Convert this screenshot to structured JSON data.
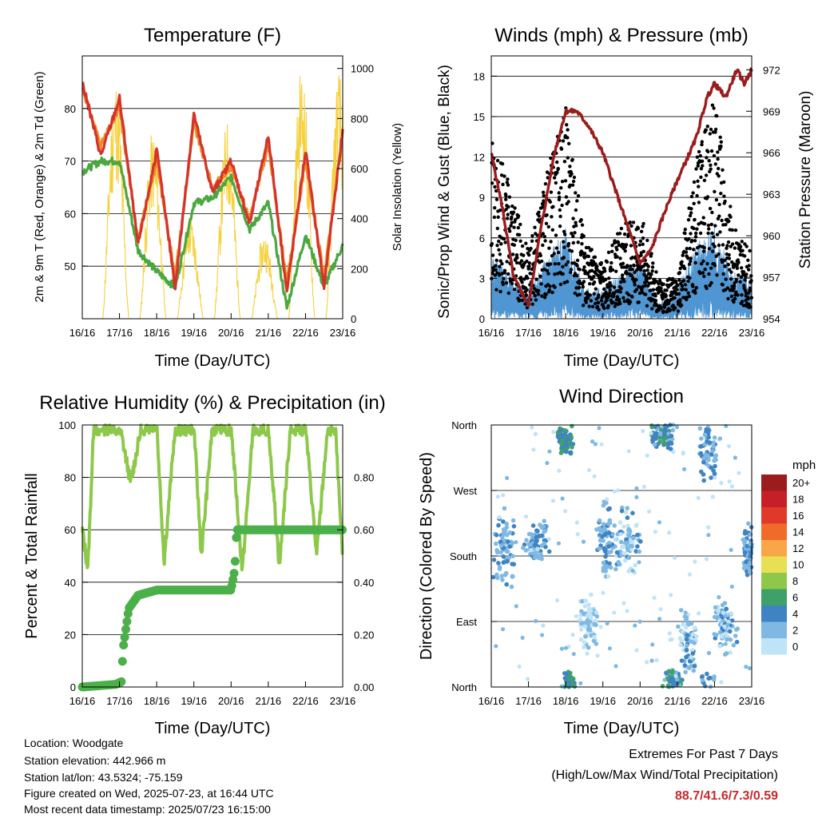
{
  "colors": {
    "temp2m": "#d4332a",
    "temp9m": "#f08a2a",
    "dewpoint": "#4aa83f",
    "insolation": "#f5d03a",
    "wind": "#4f96d2",
    "gust": "#000000",
    "pressure": "#9b1c1c",
    "rh": "#8dc84b",
    "precip": "#4bb04a",
    "extremes": "#c8282c"
  },
  "time_ticks": [
    "16/16",
    "17/16",
    "18/16",
    "19/16",
    "20/16",
    "21/16",
    "22/16",
    "23/16"
  ],
  "chart_data": [
    {
      "id": "temperature",
      "type": "line",
      "title": "Temperature (F)",
      "xlabel": "Time (Day/UTC)",
      "ylabel": "2m & 9m T (Red, Orange) & 2m Td (Green)",
      "y2label": "Solar Insolation (Yellow)",
      "x": [
        0,
        0.5,
        1,
        1.5,
        2,
        2.5,
        3,
        3.5,
        4,
        4.5,
        5,
        5.5,
        6,
        6.5,
        7
      ],
      "ylim": [
        40,
        90
      ],
      "yticks": [
        50,
        60,
        70,
        80
      ],
      "y2lim": [
        0,
        1050
      ],
      "y2ticks": [
        0,
        200,
        400,
        600,
        800,
        1000
      ],
      "grid": true,
      "series": [
        {
          "color_key": "temp2m",
          "values": [
            85,
            71,
            82,
            54,
            72,
            46,
            79,
            64,
            70,
            58,
            75,
            45,
            72,
            46,
            76
          ]
        },
        {
          "color_key": "temp9m",
          "values": [
            84,
            73,
            80,
            55,
            70,
            48,
            77,
            65,
            69,
            59,
            73,
            47,
            70,
            48,
            75
          ]
        },
        {
          "color_key": "dewpoint",
          "values": [
            68,
            70,
            70,
            53,
            49,
            46,
            62,
            63,
            67,
            57,
            62,
            42,
            56,
            46,
            54
          ]
        }
      ],
      "insolation": [
        {
          "day": 0,
          "peak": 980
        },
        {
          "day": 1,
          "peak": 760
        },
        {
          "day": 2,
          "peak": 420
        },
        {
          "day": 3,
          "peak": 800
        },
        {
          "day": 4,
          "peak": 350
        },
        {
          "day": 5,
          "peak": 1020
        },
        {
          "day": 6,
          "peak": 1000
        }
      ]
    },
    {
      "id": "winds",
      "type": "line",
      "title": "Winds (mph) & Pressure (mb)",
      "xlabel": "Time (Day/UTC)",
      "ylabel": "Sonic/Prop Wind & Gust (Blue, Black)",
      "y2label": "Station Pressure (Maroon)",
      "ylim": [
        0,
        19.5
      ],
      "yticks": [
        0,
        3,
        6,
        9,
        12,
        15,
        18
      ],
      "y2lim": [
        954,
        973
      ],
      "y2ticks": [
        954,
        957,
        960,
        963,
        966,
        969,
        972
      ],
      "grid": true,
      "pressure": {
        "x": [
          0,
          0.3,
          0.6,
          1,
          1.3,
          1.7,
          2,
          2.3,
          2.6,
          3,
          3.5,
          4,
          4.3,
          4.7,
          5,
          5.5,
          5.8,
          6,
          6.3,
          6.6,
          6.8,
          7
        ],
        "values": [
          966,
          962,
          957,
          955,
          960,
          966,
          969,
          969,
          968,
          966,
          962,
          958,
          959,
          962,
          964,
          967,
          970,
          971,
          970,
          972,
          971,
          972
        ]
      },
      "wind_envelope": [
        4,
        3,
        2,
        4,
        6,
        2,
        2,
        3,
        4,
        1,
        2,
        5,
        6,
        3,
        3
      ],
      "gust_envelope": [
        14,
        10,
        5,
        11,
        16,
        6,
        4,
        7,
        8,
        3,
        3,
        12,
        17,
        7,
        5
      ]
    },
    {
      "id": "humidity",
      "type": "line",
      "title": "Relative Humidity (%) & Precipitation (in)",
      "xlabel": "Time (Day/UTC)",
      "ylabel": "Percent & Total Rainfall",
      "ylim": [
        0,
        100
      ],
      "yticks": [
        0,
        20,
        40,
        60,
        80,
        100
      ],
      "y2lim": [
        0,
        1.0
      ],
      "y2ticks": [
        "0.00",
        "0.20",
        "0.40",
        "0.60",
        "0.80"
      ],
      "grid": true,
      "rh": {
        "x": [
          0,
          0.15,
          0.3,
          0.5,
          0.7,
          1,
          1.3,
          1.6,
          1.8,
          2.0,
          2.2,
          2.5,
          2.8,
          3.0,
          3.2,
          3.5,
          3.8,
          4.0,
          4.3,
          4.6,
          4.8,
          5.0,
          5.3,
          5.6,
          5.8,
          6.0,
          6.3,
          6.6,
          6.8,
          7.0
        ],
        "values": [
          60,
          45,
          97,
          100,
          100,
          100,
          78,
          100,
          100,
          100,
          48,
          100,
          100,
          100,
          50,
          100,
          100,
          100,
          44,
          100,
          100,
          100,
          46,
          100,
          100,
          100,
          50,
          100,
          100,
          48
        ]
      },
      "precip": {
        "x": [
          0,
          0.9,
          1.05,
          1.1,
          1.25,
          1.5,
          2.0,
          3.0,
          4.0,
          4.1,
          4.15,
          5.0,
          6.0,
          7.0
        ],
        "values": [
          0.0,
          0.01,
          0.02,
          0.15,
          0.3,
          0.35,
          0.37,
          0.37,
          0.37,
          0.45,
          0.6,
          0.6,
          0.6,
          0.6
        ]
      }
    },
    {
      "id": "direction",
      "type": "scatter",
      "title": "Wind Direction",
      "xlabel": "Time (Day/UTC)",
      "ylabel": "Direction (Colored By Speed)",
      "yticks": [
        "North",
        "East",
        "South",
        "West",
        "North"
      ],
      "ylim": [
        0,
        360
      ],
      "grid": true,
      "legend_title": "mph",
      "legend_position": "right",
      "legend_labels": [
        "20+",
        "18",
        "16",
        "14",
        "12",
        "10",
        "8",
        "6",
        "4",
        "2",
        "0"
      ],
      "legend_colors": [
        "#9b1c1c",
        "#c42026",
        "#e0392a",
        "#f06a2a",
        "#f8a648",
        "#e8df54",
        "#8dc84b",
        "#3fa16a",
        "#3f83c2",
        "#7fb9e3",
        "#bfe3f7"
      ],
      "clusters": [
        {
          "t": 0.3,
          "dir": 190,
          "spread_t": 0.35,
          "spread_d": 60,
          "speed": 3
        },
        {
          "t": 1.2,
          "dir": 200,
          "spread_t": 0.4,
          "spread_d": 30,
          "speed": 3
        },
        {
          "t": 2.0,
          "dir": 340,
          "spread_t": 0.25,
          "spread_d": 25,
          "speed": 5
        },
        {
          "t": 2.1,
          "dir": 10,
          "spread_t": 0.15,
          "spread_d": 12,
          "speed": 5
        },
        {
          "t": 2.6,
          "dir": 90,
          "spread_t": 0.3,
          "spread_d": 40,
          "speed": 1
        },
        {
          "t": 3.1,
          "dir": 200,
          "spread_t": 0.3,
          "spread_d": 60,
          "speed": 3
        },
        {
          "t": 3.7,
          "dir": 200,
          "spread_t": 0.4,
          "spread_d": 50,
          "speed": 2
        },
        {
          "t": 4.6,
          "dir": 345,
          "spread_t": 0.4,
          "spread_d": 20,
          "speed": 4
        },
        {
          "t": 5.3,
          "dir": 60,
          "spread_t": 0.3,
          "spread_d": 50,
          "speed": 2
        },
        {
          "t": 5.8,
          "dir": 330,
          "spread_t": 0.3,
          "spread_d": 60,
          "speed": 3
        },
        {
          "t": 6.3,
          "dir": 80,
          "spread_t": 0.35,
          "spread_d": 40,
          "speed": 2
        },
        {
          "t": 6.9,
          "dir": 190,
          "spread_t": 0.15,
          "spread_d": 40,
          "speed": 3
        },
        {
          "t": 4.9,
          "dir": 10,
          "spread_t": 0.25,
          "spread_d": 15,
          "speed": 4
        }
      ]
    }
  ],
  "station": {
    "location": "Location: Woodgate",
    "elevation": "Station elevation: 442.966 m",
    "latlon": "Station lat/lon: 43.5324; -75.159",
    "created": "Figure created on Wed, 2025-07-23, at 16:44 UTC",
    "recent": "Most recent data timestamp: 2025/07/23 16:15:00"
  },
  "extremes": {
    "heading": "Extremes For Past 7 Days",
    "subheading": "(High/Low/Max Wind/Total Precipitation)",
    "values": "88.7/41.6/7.3/0.59"
  }
}
